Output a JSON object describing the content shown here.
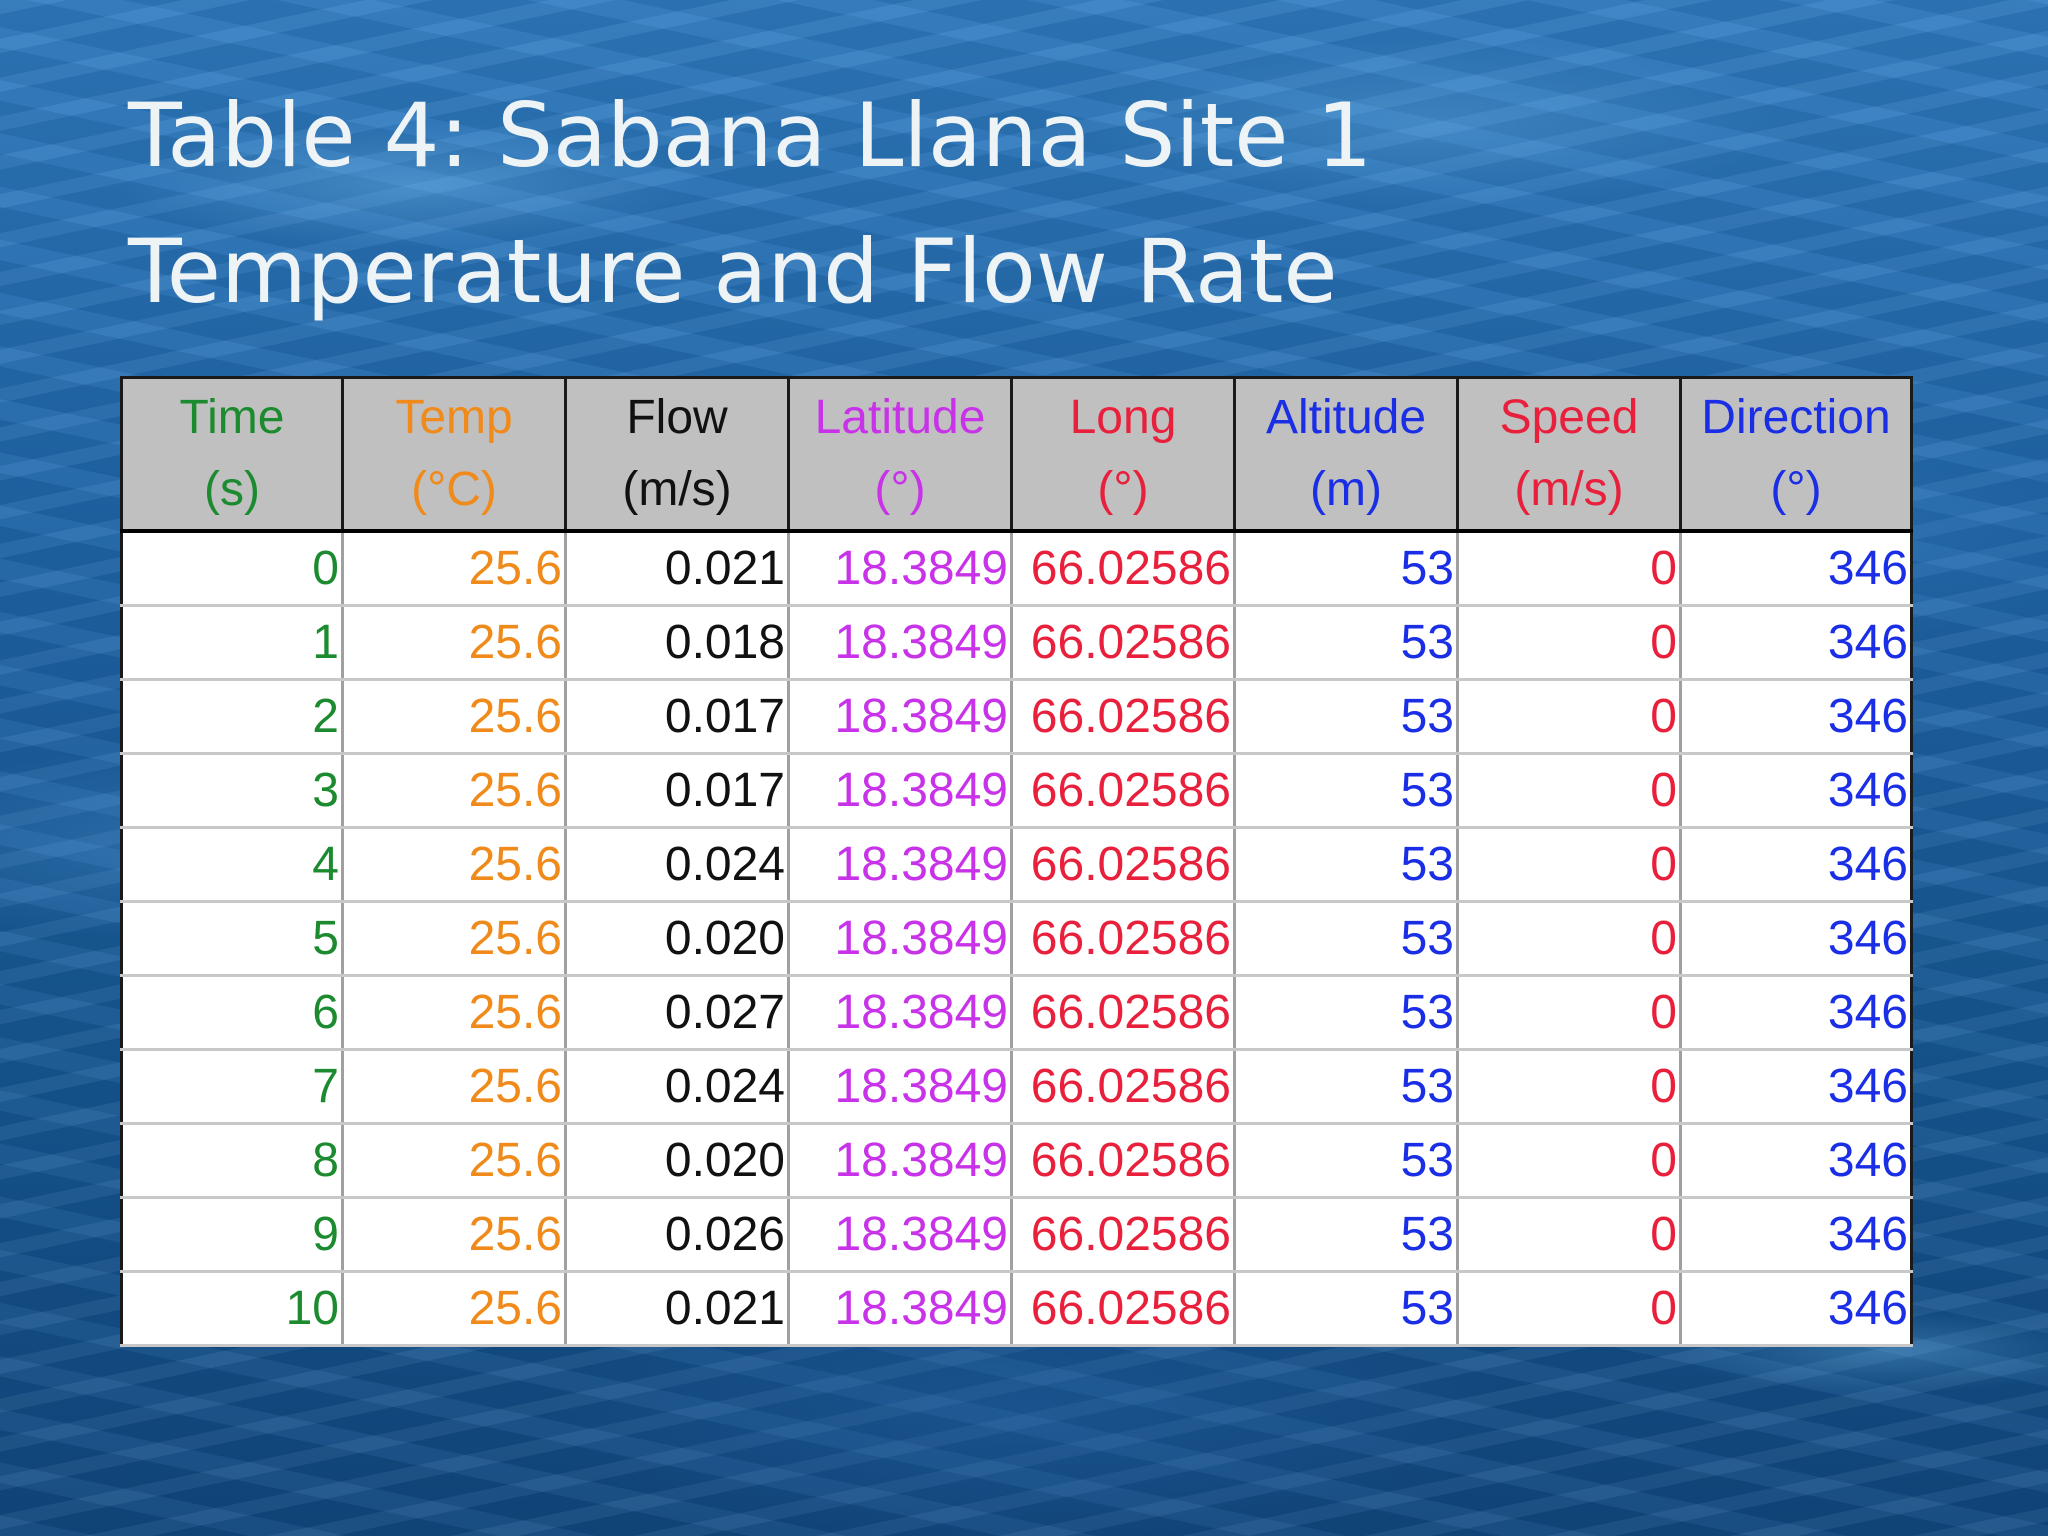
{
  "slide": {
    "title_line1": "Table 4: Sabana Llana Site 1",
    "title_line2": "Temperature and Flow Rate"
  },
  "table": {
    "columns": [
      {
        "key": "time",
        "label": "Time",
        "unit": "(s)",
        "color": "#1c8a2e"
      },
      {
        "key": "temp",
        "label": "Temp",
        "unit": "(°C)",
        "color": "#f08a1a"
      },
      {
        "key": "flow",
        "label": "Flow",
        "unit": "(m/s)",
        "color": "#111111"
      },
      {
        "key": "lat",
        "label": "Latitude",
        "unit": "(°)",
        "color": "#c832e8"
      },
      {
        "key": "long",
        "label": "Long",
        "unit": "(°)",
        "color": "#e8203c"
      },
      {
        "key": "alt",
        "label": "Altitude",
        "unit": "(m)",
        "color": "#1a2ee6"
      },
      {
        "key": "spd",
        "label": "Speed",
        "unit": "(m/s)",
        "color": "#e8203c"
      },
      {
        "key": "dir",
        "label": "Direction",
        "unit": "(°)",
        "color": "#1a2ee6"
      }
    ],
    "rows": [
      [
        "0",
        "25.6",
        "0.021",
        "18.3849",
        "66.02586",
        "53",
        "0",
        "346"
      ],
      [
        "1",
        "25.6",
        "0.018",
        "18.3849",
        "66.02586",
        "53",
        "0",
        "346"
      ],
      [
        "2",
        "25.6",
        "0.017",
        "18.3849",
        "66.02586",
        "53",
        "0",
        "346"
      ],
      [
        "3",
        "25.6",
        "0.017",
        "18.3849",
        "66.02586",
        "53",
        "0",
        "346"
      ],
      [
        "4",
        "25.6",
        "0.024",
        "18.3849",
        "66.02586",
        "53",
        "0",
        "346"
      ],
      [
        "5",
        "25.6",
        "0.020",
        "18.3849",
        "66.02586",
        "53",
        "0",
        "346"
      ],
      [
        "6",
        "25.6",
        "0.027",
        "18.3849",
        "66.02586",
        "53",
        "0",
        "346"
      ],
      [
        "7",
        "25.6",
        "0.024",
        "18.3849",
        "66.02586",
        "53",
        "0",
        "346"
      ],
      [
        "8",
        "25.6",
        "0.020",
        "18.3849",
        "66.02586",
        "53",
        "0",
        "346"
      ],
      [
        "9",
        "25.6",
        "0.026",
        "18.3849",
        "66.02586",
        "53",
        "0",
        "346"
      ],
      [
        "10",
        "25.6",
        "0.021",
        "18.3849",
        "66.02586",
        "53",
        "0",
        "346"
      ]
    ]
  }
}
